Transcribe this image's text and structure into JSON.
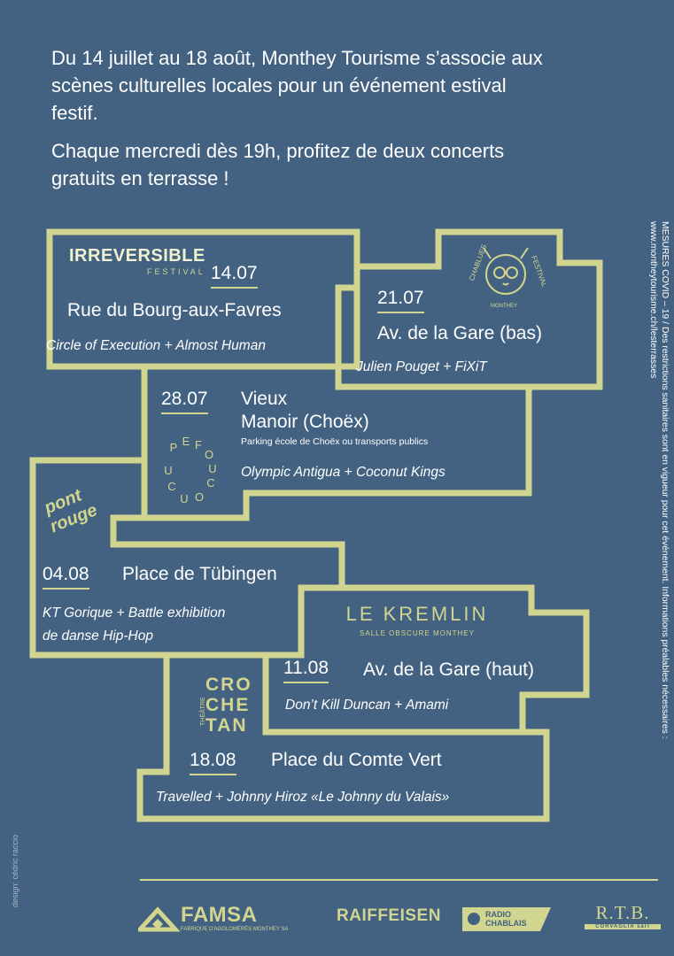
{
  "intro": {
    "line1": "Du 14 juillet au 18 août, Monthey Tourisme s’associe aux scènes culturelles locales pour un événement estival festif.",
    "line2": "Chaque mercredi dès 19h, profitez de deux concerts gratuits en terrasse !"
  },
  "colors": {
    "background": "#436282",
    "accent": "#d1d58f",
    "text": "#ffffff"
  },
  "events": [
    {
      "date": "14.07",
      "venue": "Rue du Bourg-aux-Favres",
      "acts": "Circle of Execution + Almost Human",
      "logo": "IRREVERSIBLE",
      "logo_sub": "FESTIVAL"
    },
    {
      "date": "21.07",
      "venue": "Av. de la Gare (bas)",
      "acts": "Julien Pouget + FiXiT",
      "logo": "CHABLUES FESTIVAL",
      "logo_sub": "MONTHEY"
    },
    {
      "date": "28.07",
      "venue_line1": "Vieux",
      "venue_line2": "Manoir (Choëx)",
      "note": "Parking école de Choëx ou transports publics",
      "acts": "Olympic Antigua + Coconut Kings",
      "logo": "PEFOUCOU"
    },
    {
      "date": "04.08",
      "venue": "Place de Tübingen",
      "acts_line1": "KT Gorique + Battle exhibition",
      "acts_line2": "de danse Hip-Hop",
      "logo_line1": "pont",
      "logo_line2": "rouge"
    },
    {
      "date": "11.08",
      "venue": "Av. de la Gare (haut)",
      "acts": "Don’t Kill Duncan + Amami",
      "logo": "LE KREMLIN",
      "logo_sub": "SALLE OBSCURE MONTHEY"
    },
    {
      "date": "18.08",
      "venue": "Place du Comte Vert",
      "acts": "Travelled + Johnny Hiroz  «Le Johnny du Valais»",
      "logo_line1": "CRO",
      "logo_line2": "CHE",
      "logo_line3": "TAN",
      "logo_side": "THÉÂTRE"
    }
  ],
  "side_note": {
    "line1": "MESURES COVID – 19 / Des restrictions sanitaires sont en vigueur pour cet événement. Informations préalables nécessaires :",
    "line2": "www.montheytourisme.ch/lesterrasses"
  },
  "credit": "design: cédric raccio",
  "sponsors": {
    "famsa": "FAMSA",
    "famsa_sub": "FABRIQUE D'AGGLOMÉRÉS MONTHEY SA",
    "raiffeisen": "RAIFFEISEN",
    "radio_line1": "RADIO",
    "radio_line2": "CHABLAIS",
    "rtb": "R.T.B.",
    "rtb_sub": "CORVAGLIA sàrl"
  }
}
